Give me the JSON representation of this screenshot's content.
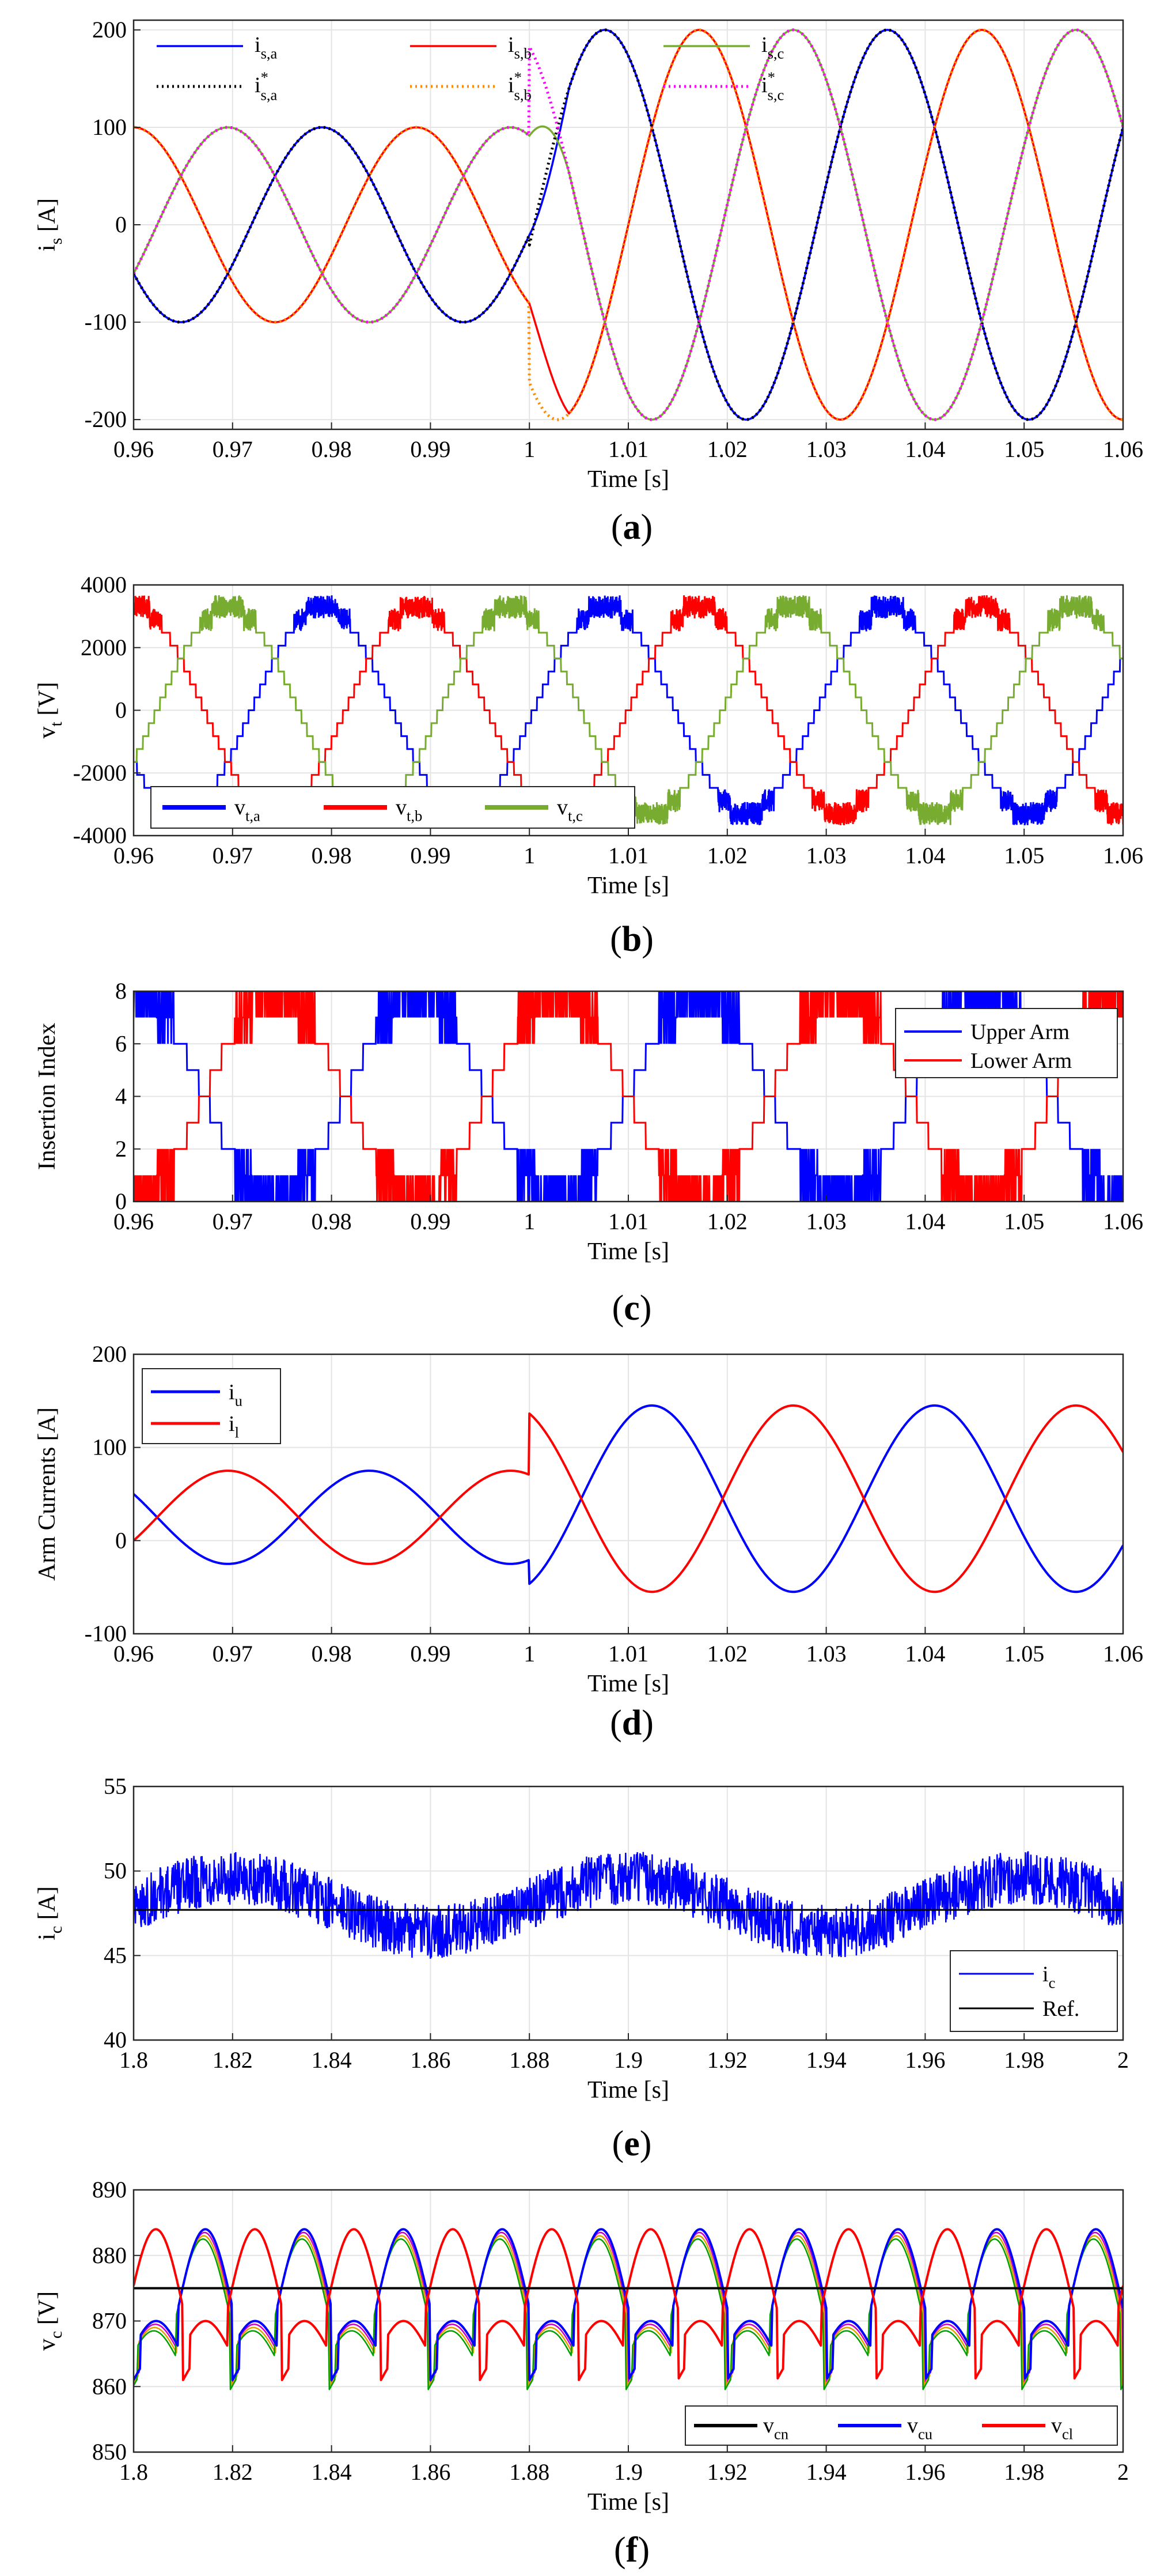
{
  "figure": {
    "panels": [
      {
        "id": "a",
        "label_prefix": "(",
        "label_letter": "a",
        "label_suffix": ")",
        "ylabel_main": "i",
        "ylabel_sub": "s",
        "ylabel_unit": " [A]",
        "xlabel": "Time [s]"
      },
      {
        "id": "b",
        "label_prefix": "(",
        "label_letter": "b",
        "label_suffix": ")",
        "ylabel_main": "v",
        "ylabel_sub": "t",
        "ylabel_unit": " [V]",
        "xlabel": "Time [s]"
      },
      {
        "id": "c",
        "label_prefix": "(",
        "label_letter": "c",
        "label_suffix": ")",
        "ylabel_main": "Insertion Index",
        "ylabel_sub": "",
        "ylabel_unit": "",
        "xlabel": "Time [s]"
      },
      {
        "id": "d",
        "label_prefix": "(",
        "label_letter": "d",
        "label_suffix": ")",
        "ylabel_main": "Arm Currents [A]",
        "ylabel_sub": "",
        "ylabel_unit": "",
        "xlabel": "Time [s]"
      },
      {
        "id": "e",
        "label_prefix": "(",
        "label_letter": "e",
        "label_suffix": ")",
        "ylabel_main": "i",
        "ylabel_sub": "c",
        "ylabel_unit": " [A]",
        "xlabel": "Time [s]"
      },
      {
        "id": "f",
        "label_prefix": "(",
        "label_letter": "f",
        "label_suffix": ")",
        "ylabel_main": "v",
        "ylabel_sub": "c",
        "ylabel_unit": " [V]",
        "xlabel": "Time [s]"
      }
    ]
  },
  "chart_data": [
    {
      "panel": "a",
      "type": "line",
      "title": "",
      "xlabel": "Time [s]",
      "ylabel": "i_s [A]",
      "xlim": [
        0.96,
        1.06
      ],
      "ylim": [
        -210,
        210
      ],
      "xticks": [
        "0.96",
        "0.97",
        "0.98",
        "0.99",
        "1",
        "1.01",
        "1.02",
        "1.03",
        "1.04",
        "1.05",
        "1.06"
      ],
      "yticks": [
        "-200",
        "-100",
        "0",
        "100",
        "200"
      ],
      "grid": true,
      "legend_position": "top-left",
      "step_time": 1.0,
      "frequency_hz": 35,
      "amplitude_before": 100,
      "amplitude_after": 200,
      "series": [
        {
          "name": "i_{s,a}",
          "label": "i",
          "sub": "s,a",
          "sup": "",
          "color": "#0000ff",
          "style": "solid",
          "phase_deg": 210
        },
        {
          "name": "i_{s,b}",
          "label": "i",
          "sub": "s,b",
          "sup": "",
          "color": "#ff0000",
          "style": "solid",
          "phase_deg": 90
        },
        {
          "name": "i_{s,c}",
          "label": "i",
          "sub": "s,c",
          "sup": "",
          "color": "#77ac30",
          "style": "solid",
          "phase_deg": -30
        },
        {
          "name": "i*_{s,a}",
          "label": "i",
          "sub": "s,a",
          "sup": "*",
          "color": "#000000",
          "style": "dotted",
          "phase_deg": 210
        },
        {
          "name": "i*_{s,b}",
          "label": "i",
          "sub": "s,b",
          "sup": "*",
          "color": "#ff8c00",
          "style": "dotted",
          "phase_deg": 90
        },
        {
          "name": "i*_{s,c}",
          "label": "i",
          "sub": "s,c",
          "sup": "*",
          "color": "#ff00ff",
          "style": "dotted",
          "phase_deg": -30
        }
      ]
    },
    {
      "panel": "b",
      "type": "line",
      "title": "",
      "xlabel": "Time [s]",
      "ylabel": "v_t [V]",
      "xlim": [
        0.96,
        1.06
      ],
      "ylim": [
        -4000,
        4000
      ],
      "xticks": [
        "0.96",
        "0.97",
        "0.98",
        "0.99",
        "1",
        "1.01",
        "1.02",
        "1.03",
        "1.04",
        "1.05",
        "1.06"
      ],
      "yticks": [
        "-4000",
        "-2000",
        "0",
        "2000",
        "4000"
      ],
      "grid": true,
      "legend_position": "bottom-left",
      "frequency_hz": 35,
      "amplitude": 3300,
      "series": [
        {
          "name": "v_{t,a}",
          "label": "v",
          "sub": "t,a",
          "color": "#0000ff",
          "phase_deg": 210
        },
        {
          "name": "v_{t,b}",
          "label": "v",
          "sub": "t,b",
          "color": "#ff0000",
          "phase_deg": 90
        },
        {
          "name": "v_{t,c}",
          "label": "v",
          "sub": "t,c",
          "color": "#77ac30",
          "phase_deg": -30
        }
      ]
    },
    {
      "panel": "c",
      "type": "line",
      "title": "",
      "xlabel": "Time [s]",
      "ylabel": "Insertion Index",
      "xlim": [
        0.96,
        1.06
      ],
      "ylim": [
        0,
        8
      ],
      "xticks": [
        "0.96",
        "0.97",
        "0.98",
        "0.99",
        "1",
        "1.01",
        "1.02",
        "1.03",
        "1.04",
        "1.05",
        "1.06"
      ],
      "yticks": [
        "0",
        "2",
        "4",
        "6",
        "8"
      ],
      "grid": true,
      "legend_position": "top-right",
      "frequency_hz": 35,
      "levels": 8,
      "series": [
        {
          "name": "Upper Arm",
          "color": "#0000ff",
          "phase_deg": 90
        },
        {
          "name": "Lower Arm",
          "color": "#ff0000",
          "phase_deg": -90
        }
      ]
    },
    {
      "panel": "d",
      "type": "line",
      "title": "",
      "xlabel": "Time [s]",
      "ylabel": "Arm Currents [A]",
      "xlim": [
        0.96,
        1.06
      ],
      "ylim": [
        -100,
        200
      ],
      "xticks": [
        "0.96",
        "0.97",
        "0.98",
        "0.99",
        "1",
        "1.01",
        "1.02",
        "1.03",
        "1.04",
        "1.05",
        "1.06"
      ],
      "yticks": [
        "-100",
        "0",
        "100",
        "200"
      ],
      "grid": true,
      "legend_position": "top-left",
      "frequency_hz": 35,
      "series": [
        {
          "name": "i_u",
          "label": "i",
          "sub": "u",
          "color": "#0000ff",
          "dc_before": 25,
          "amp_before": 50,
          "dc_after": 45,
          "amp_after": 100,
          "phase_deg": 150
        },
        {
          "name": "i_l",
          "label": "i",
          "sub": "l",
          "color": "#ff0000",
          "dc_before": 25,
          "amp_before": 50,
          "dc_after": 45,
          "amp_after": 100,
          "phase_deg": -30
        }
      ]
    },
    {
      "panel": "e",
      "type": "line",
      "title": "",
      "xlabel": "Time [s]",
      "ylabel": "i_c [A]",
      "xlim": [
        1.8,
        2.0
      ],
      "ylim": [
        40,
        55
      ],
      "xticks": [
        "1.8",
        "1.82",
        "1.84",
        "1.86",
        "1.88",
        "1.9",
        "1.92",
        "1.94",
        "1.96",
        "1.98",
        "2"
      ],
      "yticks": [
        "40",
        "45",
        "50",
        "55"
      ],
      "grid": true,
      "legend_position": "bottom-right",
      "series": [
        {
          "name": "i_c",
          "label": "i",
          "sub": "c",
          "color": "#0000ff",
          "mean": 48,
          "ripple": 2
        },
        {
          "name": "Ref.",
          "label": "Ref.",
          "sub": "",
          "color": "#000000",
          "value": 47.7
        }
      ]
    },
    {
      "panel": "f",
      "type": "line",
      "title": "",
      "xlabel": "Time [s]",
      "ylabel": "v_c [V]",
      "xlim": [
        1.8,
        2.0
      ],
      "ylim": [
        850,
        890
      ],
      "xticks": [
        "1.8",
        "1.82",
        "1.84",
        "1.86",
        "1.88",
        "1.9",
        "1.92",
        "1.94",
        "1.96",
        "1.98",
        "2"
      ],
      "yticks": [
        "850",
        "860",
        "870",
        "880",
        "890"
      ],
      "grid": true,
      "legend_position": "bottom-right",
      "frequency_hz": 50,
      "series": [
        {
          "name": "v_cn",
          "label": "v",
          "sub": "cn",
          "color": "#000000",
          "value": 875
        },
        {
          "name": "v_cu",
          "label": "v",
          "sub": "cu",
          "color": "#0000ff",
          "mean": 872,
          "amplitude": 12,
          "phase_deg": 0
        },
        {
          "name": "v_cl",
          "label": "v",
          "sub": "cl",
          "color": "#ff0000",
          "mean": 872,
          "amplitude": 12,
          "phase_deg": 180
        }
      ]
    }
  ]
}
